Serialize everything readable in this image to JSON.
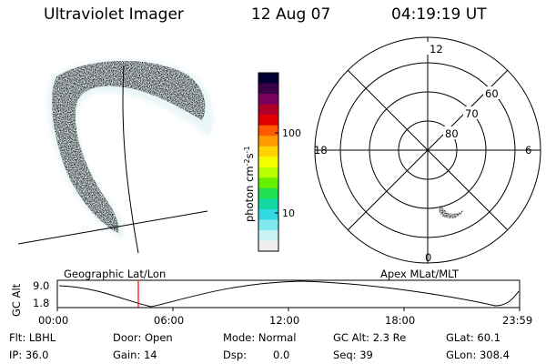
{
  "header": {
    "instrument": "Ultraviolet Imager",
    "date": "12 Aug 07",
    "time": "04:19:19 UT"
  },
  "colorbar": {
    "label": "photon cm",
    "label_sup1": "-2",
    "label_mid": "s",
    "label_sup2": "-1",
    "ticks": [
      "100",
      "10"
    ],
    "colors": [
      "#000033",
      "#3a0048",
      "#7a0060",
      "#b0002a",
      "#e00000",
      "#ff5a00",
      "#ff9a00",
      "#ffd200",
      "#f6ff00",
      "#b8ff00",
      "#66f000",
      "#22e050",
      "#10d8a0",
      "#30d8e0",
      "#80e8f0",
      "#c8f4f6",
      "#eeeeee"
    ]
  },
  "polar": {
    "mlt_labels": [
      "12",
      "18",
      "6",
      "0"
    ],
    "mlat_labels": [
      "60",
      "70",
      "80"
    ]
  },
  "timeline": {
    "left_title": "Geographic Lat/Lon",
    "right_title": "Apex MLat/MLT",
    "axis_label": "GC Alt",
    "y_ticks": [
      "9.0",
      "1.8"
    ],
    "x_ticks": [
      "00:00",
      "06:00",
      "12:00",
      "18:00",
      "23:59"
    ],
    "marker_color": "#ff0000"
  },
  "status": {
    "flt": "Flt: LBHL",
    "ip": "IP: 36.0",
    "door": "Door: Open",
    "gain": "Gain: 14",
    "mode": "Mode: Normal",
    "dsp_label": "Dsp:",
    "dsp_value": "0.0",
    "gcalt": "GC Alt: 2.3 Re",
    "seq": "Seq: 39",
    "glat": "GLat:  60.1",
    "glon": "GLon: 308.4"
  }
}
